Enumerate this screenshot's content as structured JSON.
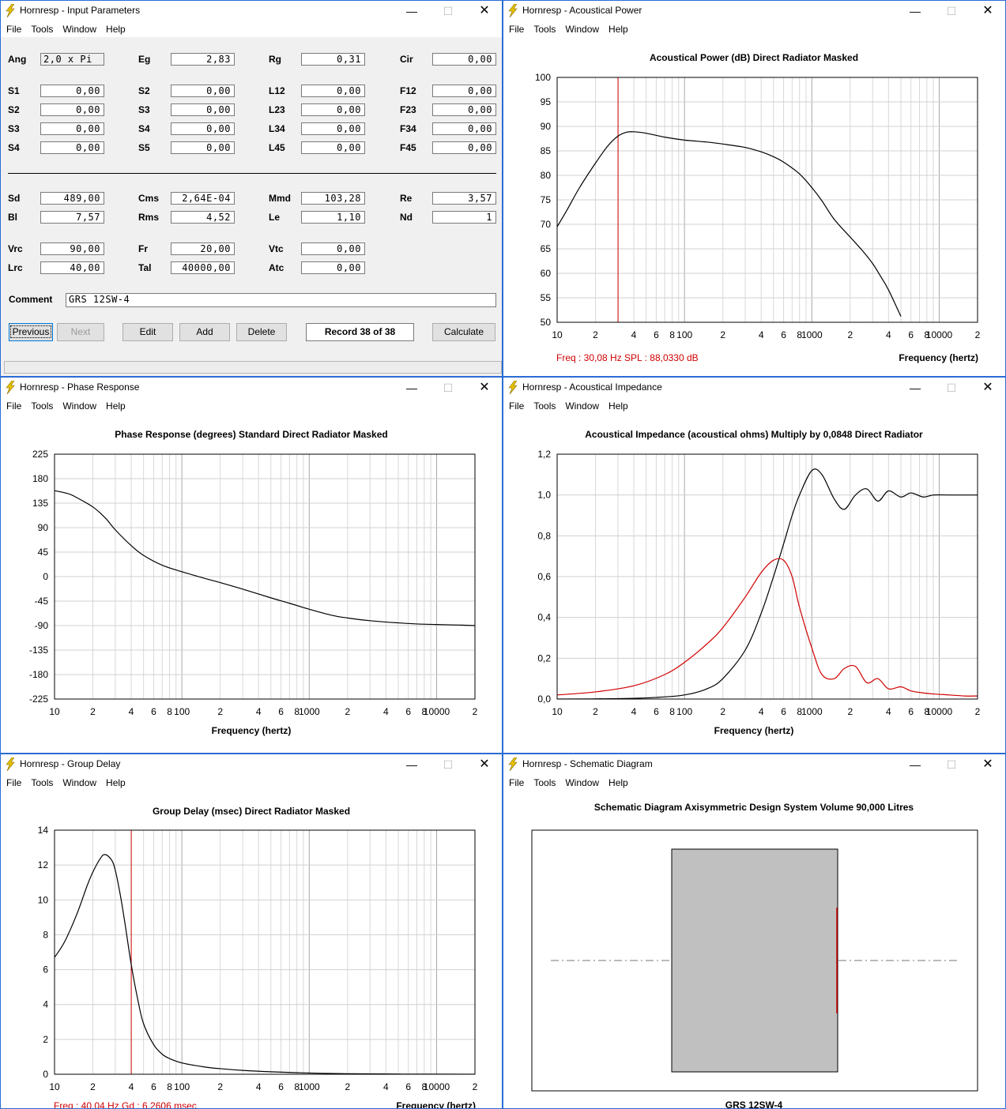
{
  "menu": [
    "File",
    "Tools",
    "Window",
    "Help"
  ],
  "colors": {
    "accent_red": "#d00000",
    "curve": "#000000",
    "window_border": "#2b6cd4",
    "grid": "#c8c8c8"
  },
  "input_window": {
    "title": "Hornresp - Input Parameters",
    "fields": [
      {
        "label": "Ang",
        "value": "2,0 x Pi",
        "readonly": true
      },
      {
        "label": "Eg",
        "value": "2,83"
      },
      {
        "label": "Rg",
        "value": "0,31"
      },
      {
        "label": "Cir",
        "value": "0,00"
      },
      {
        "label": "S1",
        "value": "0,00"
      },
      {
        "label": "S2",
        "value": "0,00"
      },
      {
        "label": "L12",
        "value": "0,00"
      },
      {
        "label": "F12",
        "value": "0,00"
      },
      {
        "label": "S2",
        "value": "0,00"
      },
      {
        "label": "S3",
        "value": "0,00"
      },
      {
        "label": "L23",
        "value": "0,00"
      },
      {
        "label": "F23",
        "value": "0,00"
      },
      {
        "label": "S3",
        "value": "0,00"
      },
      {
        "label": "S4",
        "value": "0,00"
      },
      {
        "label": "L34",
        "value": "0,00"
      },
      {
        "label": "F34",
        "value": "0,00"
      },
      {
        "label": "S4",
        "value": "0,00"
      },
      {
        "label": "S5",
        "value": "0,00"
      },
      {
        "label": "L45",
        "value": "0,00"
      },
      {
        "label": "F45",
        "value": "0,00"
      },
      {
        "label": "Sd",
        "value": "489,00"
      },
      {
        "label": "Cms",
        "value": "2,64E-04"
      },
      {
        "label": "Mmd",
        "value": "103,28"
      },
      {
        "label": "Re",
        "value": "3,57"
      },
      {
        "label": "Bl",
        "value": "7,57"
      },
      {
        "label": "Rms",
        "value": "4,52"
      },
      {
        "label": "Le",
        "value": "1,10"
      },
      {
        "label": "Nd",
        "value": "1"
      },
      {
        "label": "Vrc",
        "value": "90,00"
      },
      {
        "label": "Fr",
        "value": "20,00"
      },
      {
        "label": "Vtc",
        "value": "0,00"
      },
      {
        "label": "Lrc",
        "value": "40,00"
      },
      {
        "label": "Tal",
        "value": "40000,00"
      },
      {
        "label": "Atc",
        "value": "0,00"
      }
    ],
    "comment_label": "Comment",
    "comment_value": "GRS 12SW-4",
    "buttons": {
      "previous": "Previous",
      "next": "Next",
      "edit": "Edit",
      "add": "Add",
      "delete": "Delete",
      "calculate": "Calculate"
    },
    "record": "Record 38 of 38"
  },
  "power_window": {
    "title": "Hornresp - Acoustical Power",
    "chart_title": "Acoustical Power (dB)   Direct Radiator   Masked",
    "xlabel": "Frequency (hertz)",
    "readout": "Freq : 30,08 Hz     SPL : 88,0330 dB"
  },
  "phase_window": {
    "title": "Hornresp - Phase Response",
    "chart_title": "Phase Response (degrees)   Standard   Direct Radiator   Masked",
    "xlabel": "Frequency (hertz)"
  },
  "impedance_window": {
    "title": "Hornresp - Acoustical Impedance",
    "chart_title": "Acoustical Impedance (acoustical ohms)   Multiply by 0,0848   Direct Radiator",
    "xlabel": "Frequency (hertz)"
  },
  "delay_window": {
    "title": "Hornresp - Group Delay",
    "chart_title": "Group Delay (msec)   Direct Radiator   Masked",
    "xlabel": "Frequency (hertz)",
    "readout": "Freq : 40,04 Hz     Gd : 6,2606 msec"
  },
  "schematic_window": {
    "title": "Hornresp - Schematic Diagram",
    "chart_title": "Schematic Diagram   Axisymmetric Design   System Volume 90,000 Litres",
    "caption": "GRS 12SW-4"
  },
  "x_ticks": [
    "10",
    "2",
    "4",
    "6",
    "8",
    "100",
    "2",
    "4",
    "6",
    "8",
    "1000",
    "2",
    "4",
    "6",
    "8",
    "10000",
    "2"
  ],
  "chart_data": [
    {
      "type": "line",
      "title": "Acoustical Power (dB)   Direct Radiator   Masked",
      "xlabel": "Frequency (hertz)",
      "ylabel": "",
      "xscale": "log",
      "xlim": [
        10,
        20000
      ],
      "ylim": [
        50,
        100
      ],
      "yticks": [
        "100",
        "95",
        "90",
        "85",
        "80",
        "75",
        "70",
        "65",
        "60",
        "55",
        "50"
      ],
      "marker_x": 30.08,
      "series": [
        {
          "x": [
            10,
            12,
            15,
            20,
            25,
            30,
            35,
            40,
            50,
            70,
            100,
            150,
            200,
            300,
            400,
            500,
            600,
            800,
            1000,
            1200,
            1500,
            2000,
            2500,
            3000,
            3500,
            4000,
            5000
          ],
          "y": [
            69.5,
            73,
            77.5,
            82.5,
            86,
            88,
            88.8,
            88.9,
            88.6,
            87.8,
            87.2,
            86.8,
            86.4,
            85.7,
            84.8,
            83.8,
            82.7,
            80.3,
            77.5,
            74.8,
            71,
            67.4,
            64.6,
            62,
            59.2,
            56.6,
            51.2
          ]
        }
      ]
    },
    {
      "type": "line",
      "title": "Phase Response (degrees)   Standard   Direct Radiator   Masked",
      "xlabel": "Frequency (hertz)",
      "ylabel": "",
      "xscale": "log",
      "xlim": [
        10,
        20000
      ],
      "ylim": [
        -225,
        225
      ],
      "yticks": [
        "225",
        "180",
        "135",
        "90",
        "45",
        "0",
        "-45",
        "-90",
        "-135",
        "-180",
        "-225"
      ],
      "series": [
        {
          "x": [
            10,
            13,
            15,
            20,
            25,
            30,
            40,
            50,
            70,
            100,
            150,
            200,
            300,
            500,
            700,
            1000,
            1500,
            2000,
            3000,
            5000,
            7000,
            10000,
            15000,
            20000
          ],
          "y": [
            158,
            152,
            145,
            128,
            108,
            86,
            57,
            39,
            21,
            9,
            -3,
            -11,
            -23,
            -39,
            -49,
            -60,
            -71,
            -76,
            -81,
            -85,
            -87,
            -88,
            -89,
            -90
          ]
        }
      ]
    },
    {
      "type": "line",
      "title": "Acoustical Impedance (acoustical ohms)   Multiply by 0,0848   Direct Radiator",
      "xlabel": "Frequency (hertz)",
      "ylabel": "",
      "xscale": "log",
      "xlim": [
        10,
        20000
      ],
      "ylim": [
        0,
        1.2
      ],
      "yticks": [
        "1,2",
        "1,0",
        "0,8",
        "0,6",
        "0,4",
        "0,2",
        "0,0"
      ],
      "series": [
        {
          "color": "#000000",
          "x": [
            10,
            30,
            60,
            100,
            150,
            200,
            300,
            400,
            500,
            600,
            700,
            800,
            1000,
            1200,
            1500,
            1800,
            2200,
            2700,
            3300,
            4000,
            5000,
            6000,
            7500,
            9000,
            12000,
            16000,
            20000
          ],
          "y": [
            0,
            0.002,
            0.008,
            0.02,
            0.05,
            0.1,
            0.24,
            0.42,
            0.6,
            0.76,
            0.9,
            1.0,
            1.12,
            1.1,
            0.98,
            0.93,
            1.0,
            1.03,
            0.97,
            1.02,
            0.99,
            1.01,
            0.99,
            1.0,
            1.0,
            1.0,
            1.0
          ]
        },
        {
          "color": "#d00000",
          "x": [
            10,
            20,
            40,
            70,
            100,
            150,
            200,
            300,
            400,
            500,
            600,
            700,
            800,
            1000,
            1200,
            1500,
            1800,
            2200,
            2700,
            3300,
            4000,
            5000,
            6000,
            7500,
            9000,
            12000,
            16000,
            20000
          ],
          "y": [
            0.02,
            0.035,
            0.065,
            0.12,
            0.18,
            0.27,
            0.35,
            0.5,
            0.62,
            0.68,
            0.68,
            0.6,
            0.45,
            0.25,
            0.12,
            0.1,
            0.15,
            0.16,
            0.08,
            0.1,
            0.05,
            0.06,
            0.04,
            0.03,
            0.025,
            0.02,
            0.015,
            0.015
          ]
        }
      ]
    },
    {
      "type": "line",
      "title": "Group Delay (msec)   Direct Radiator   Masked",
      "xlabel": "Frequency (hertz)",
      "ylabel": "",
      "xscale": "log",
      "xlim": [
        10,
        20000
      ],
      "ylim": [
        0,
        14
      ],
      "yticks": [
        "14",
        "12",
        "10",
        "8",
        "6",
        "4",
        "2",
        "0"
      ],
      "marker_x": 40.04,
      "series": [
        {
          "x": [
            10,
            12,
            15,
            18,
            20,
            23,
            25,
            28,
            30,
            33,
            36,
            40,
            45,
            50,
            60,
            70,
            80,
            100,
            150,
            200,
            300,
            500,
            1000,
            2000,
            5000,
            20000
          ],
          "y": [
            6.7,
            7.6,
            9.2,
            10.8,
            11.6,
            12.4,
            12.6,
            12.3,
            11.7,
            10.2,
            8.5,
            6.3,
            4.3,
            2.9,
            1.7,
            1.15,
            0.9,
            0.65,
            0.42,
            0.32,
            0.22,
            0.14,
            0.07,
            0.03,
            0.01,
            0.0
          ]
        }
      ]
    }
  ]
}
